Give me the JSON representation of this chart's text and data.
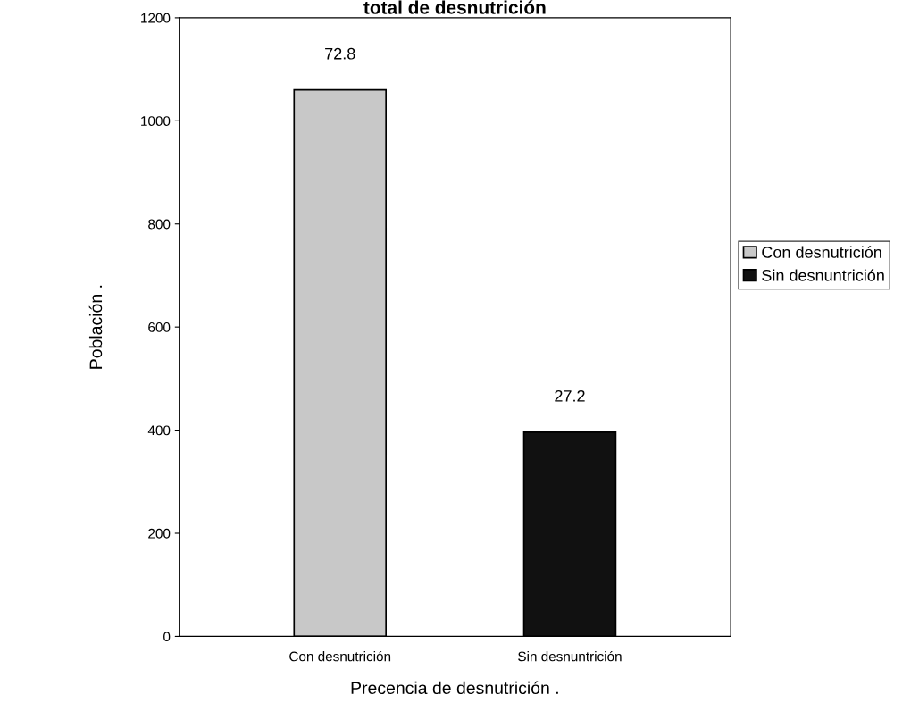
{
  "chart_data": {
    "type": "bar",
    "title": "total de desnutrición",
    "xlabel": "Precencia de desnutrición .",
    "ylabel": "Población .",
    "categories": [
      "Con desnutrición",
      "Sin desnuntrición"
    ],
    "series": [
      {
        "name": "Con desnutrición",
        "color": "#c8c8c8",
        "values": [
          1060,
          null
        ]
      },
      {
        "name": "Sin desnuntrición",
        "color": "#111111",
        "values": [
          null,
          396
        ]
      }
    ],
    "annotations": [
      {
        "text": "72.8",
        "x": "Con desnutrición",
        "y": 1060
      },
      {
        "text": "27.2",
        "x": "Sin desnuntrición",
        "y": 396
      }
    ],
    "ylim": [
      0,
      1200
    ],
    "yticks": [
      0,
      200,
      400,
      600,
      800,
      1000,
      1200
    ],
    "grid": false,
    "legend": "right"
  }
}
